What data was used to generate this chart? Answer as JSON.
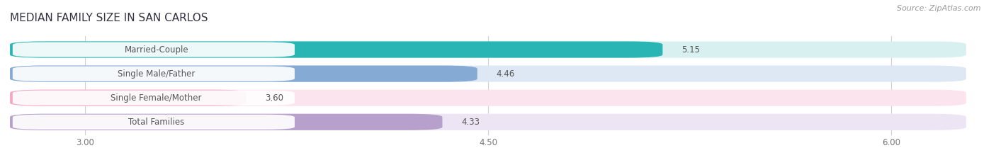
{
  "title": "MEDIAN FAMILY SIZE IN SAN CARLOS",
  "source": "Source: ZipAtlas.com",
  "categories": [
    "Married-Couple",
    "Single Male/Father",
    "Single Female/Mother",
    "Total Families"
  ],
  "values": [
    5.15,
    4.46,
    3.6,
    4.33
  ],
  "value_labels": [
    "5.15",
    "4.46",
    "3.60",
    "4.33"
  ],
  "bar_colors": [
    "#2ab5b5",
    "#85aad4",
    "#f4a8c4",
    "#b8a0cc"
  ],
  "bar_bg_colors": [
    "#d8f0f0",
    "#dde8f4",
    "#fce4ef",
    "#ede4f4"
  ],
  "xlim_min": 2.72,
  "xlim_max": 6.28,
  "xticks": [
    3.0,
    4.5,
    6.0
  ],
  "xtick_labels": [
    "3.00",
    "4.50",
    "6.00"
  ],
  "title_fontsize": 11,
  "label_fontsize": 8.5,
  "value_fontsize": 8.5,
  "source_fontsize": 8,
  "background_color": "#ffffff",
  "grid_color": "#d0d0d0",
  "text_color": "#555555",
  "title_color": "#333344"
}
